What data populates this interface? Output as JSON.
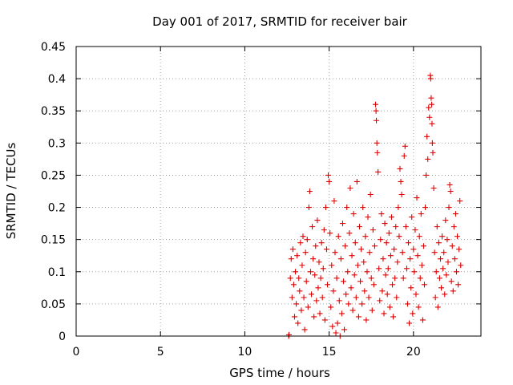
{
  "chart_data": {
    "type": "scatter",
    "title": "Day 001 of 2017, SRMTID for receiver bair",
    "xlabel": "GPS time / hours",
    "ylabel": "SRMTID / TECUs",
    "xlim": [
      0,
      24
    ],
    "ylim": [
      0,
      0.45
    ],
    "x_ticks": [
      0,
      5,
      10,
      15,
      20
    ],
    "y_ticks": [
      0,
      0.05,
      0.1,
      0.15,
      0.2,
      0.25,
      0.3,
      0.35,
      0.4,
      0.45
    ],
    "x_tick_labels": [
      "0",
      "5",
      "10",
      "15",
      "20"
    ],
    "y_tick_labels": [
      "0",
      "0.05",
      "0.1",
      "0.15",
      "0.2",
      "0.25",
      "0.3",
      "0.35",
      "0.4",
      "0.45"
    ],
    "grid": true,
    "marker": "+",
    "color": "#e00000",
    "series": [
      {
        "name": "SRMTID",
        "points": [
          [
            12.6,
            0.0
          ],
          [
            12.62,
            0.002
          ],
          [
            12.7,
            0.09
          ],
          [
            12.75,
            0.12
          ],
          [
            12.8,
            0.06
          ],
          [
            12.85,
            0.135
          ],
          [
            12.9,
            0.08
          ],
          [
            12.95,
            0.03
          ],
          [
            13.0,
            0.1
          ],
          [
            13.05,
            0.05
          ],
          [
            13.1,
            0.125
          ],
          [
            13.15,
            0.02
          ],
          [
            13.2,
            0.09
          ],
          [
            13.25,
            0.07
          ],
          [
            13.3,
            0.145
          ],
          [
            13.35,
            0.04
          ],
          [
            13.4,
            0.11
          ],
          [
            13.45,
            0.155
          ],
          [
            13.5,
            0.06
          ],
          [
            13.55,
            0.01
          ],
          [
            13.6,
            0.13
          ],
          [
            13.65,
            0.085
          ],
          [
            13.7,
            0.15
          ],
          [
            13.75,
            0.045
          ],
          [
            13.8,
            0.2
          ],
          [
            13.85,
            0.225
          ],
          [
            13.9,
            0.1
          ],
          [
            13.95,
            0.065
          ],
          [
            14.0,
            0.17
          ],
          [
            14.05,
            0.12
          ],
          [
            14.1,
            0.03
          ],
          [
            14.15,
            0.095
          ],
          [
            14.2,
            0.14
          ],
          [
            14.25,
            0.055
          ],
          [
            14.3,
            0.18
          ],
          [
            14.35,
            0.075
          ],
          [
            14.4,
            0.115
          ],
          [
            14.45,
            0.035
          ],
          [
            14.5,
            0.09
          ],
          [
            14.55,
            0.145
          ],
          [
            14.6,
            0.06
          ],
          [
            14.65,
            0.105
          ],
          [
            14.7,
            0.165
          ],
          [
            14.75,
            0.025
          ],
          [
            14.8,
            0.2
          ],
          [
            14.85,
            0.135
          ],
          [
            14.9,
            0.08
          ],
          [
            14.95,
            0.25
          ],
          [
            15.0,
            0.24
          ],
          [
            15.05,
            0.16
          ],
          [
            15.1,
            0.045
          ],
          [
            15.15,
            0.11
          ],
          [
            15.2,
            0.015
          ],
          [
            15.25,
            0.07
          ],
          [
            15.3,
            0.21
          ],
          [
            15.35,
            0.13
          ],
          [
            15.4,
            0.005
          ],
          [
            15.45,
            0.09
          ],
          [
            15.5,
            0.02
          ],
          [
            15.55,
            0.155
          ],
          [
            15.6,
            0.055
          ],
          [
            15.65,
            0.0
          ],
          [
            15.7,
            0.12
          ],
          [
            15.75,
            0.035
          ],
          [
            15.8,
            0.175
          ],
          [
            15.85,
            0.085
          ],
          [
            15.9,
            0.01
          ],
          [
            15.95,
            0.14
          ],
          [
            16.0,
            0.065
          ],
          [
            16.05,
            0.2
          ],
          [
            16.1,
            0.1
          ],
          [
            16.15,
            0.05
          ],
          [
            16.2,
            0.16
          ],
          [
            16.25,
            0.23
          ],
          [
            16.3,
            0.075
          ],
          [
            16.35,
            0.125
          ],
          [
            16.4,
            0.04
          ],
          [
            16.45,
            0.19
          ],
          [
            16.5,
            0.095
          ],
          [
            16.55,
            0.145
          ],
          [
            16.6,
            0.06
          ],
          [
            16.65,
            0.24
          ],
          [
            16.7,
            0.11
          ],
          [
            16.75,
            0.03
          ],
          [
            16.8,
            0.17
          ],
          [
            16.85,
            0.085
          ],
          [
            16.9,
            0.135
          ],
          [
            16.95,
            0.05
          ],
          [
            17.0,
            0.2
          ],
          [
            17.05,
            0.115
          ],
          [
            17.1,
            0.07
          ],
          [
            17.15,
            0.155
          ],
          [
            17.2,
            0.025
          ],
          [
            17.25,
            0.1
          ],
          [
            17.3,
            0.185
          ],
          [
            17.35,
            0.06
          ],
          [
            17.4,
            0.13
          ],
          [
            17.45,
            0.22
          ],
          [
            17.5,
            0.09
          ],
          [
            17.55,
            0.04
          ],
          [
            17.6,
            0.165
          ],
          [
            17.65,
            0.08
          ],
          [
            17.7,
            0.14
          ],
          [
            17.75,
            0.36
          ],
          [
            17.78,
            0.35
          ],
          [
            17.8,
            0.335
          ],
          [
            17.83,
            0.3
          ],
          [
            17.86,
            0.285
          ],
          [
            17.9,
            0.255
          ],
          [
            17.95,
            0.105
          ],
          [
            18.0,
            0.055
          ],
          [
            18.05,
            0.15
          ],
          [
            18.1,
            0.19
          ],
          [
            18.15,
            0.07
          ],
          [
            18.2,
            0.12
          ],
          [
            18.25,
            0.035
          ],
          [
            18.3,
            0.175
          ],
          [
            18.35,
            0.095
          ],
          [
            18.4,
            0.145
          ],
          [
            18.45,
            0.065
          ],
          [
            18.5,
            0.105
          ],
          [
            18.55,
            0.16
          ],
          [
            18.6,
            0.045
          ],
          [
            18.65,
            0.125
          ],
          [
            18.7,
            0.185
          ],
          [
            18.75,
            0.08
          ],
          [
            18.8,
            0.03
          ],
          [
            18.85,
            0.135
          ],
          [
            18.9,
            0.09
          ],
          [
            18.95,
            0.17
          ],
          [
            19.0,
            0.06
          ],
          [
            19.05,
            0.115
          ],
          [
            19.1,
            0.2
          ],
          [
            19.15,
            0.155
          ],
          [
            19.2,
            0.26
          ],
          [
            19.25,
            0.24
          ],
          [
            19.3,
            0.22
          ],
          [
            19.35,
            0.13
          ],
          [
            19.4,
            0.09
          ],
          [
            19.45,
            0.28
          ],
          [
            19.5,
            0.295
          ],
          [
            19.55,
            0.17
          ],
          [
            19.6,
            0.105
          ],
          [
            19.65,
            0.05
          ],
          [
            19.7,
            0.145
          ],
          [
            19.75,
            0.02
          ],
          [
            19.8,
            0.12
          ],
          [
            19.85,
            0.075
          ],
          [
            19.9,
            0.185
          ],
          [
            19.95,
            0.035
          ],
          [
            20.0,
            0.135
          ],
          [
            20.05,
            0.1
          ],
          [
            20.1,
            0.165
          ],
          [
            20.15,
            0.065
          ],
          [
            20.2,
            0.215
          ],
          [
            20.25,
            0.125
          ],
          [
            20.3,
            0.045
          ],
          [
            20.35,
            0.155
          ],
          [
            20.4,
            0.09
          ],
          [
            20.45,
            0.19
          ],
          [
            20.5,
            0.11
          ],
          [
            20.55,
            0.025
          ],
          [
            20.6,
            0.14
          ],
          [
            20.65,
            0.08
          ],
          [
            20.7,
            0.2
          ],
          [
            20.75,
            0.25
          ],
          [
            20.8,
            0.31
          ],
          [
            20.85,
            0.275
          ],
          [
            20.9,
            0.355
          ],
          [
            20.95,
            0.34
          ],
          [
            21.0,
            0.405
          ],
          [
            21.02,
            0.4
          ],
          [
            21.05,
            0.37
          ],
          [
            21.08,
            0.36
          ],
          [
            21.1,
            0.33
          ],
          [
            21.12,
            0.3
          ],
          [
            21.15,
            0.285
          ],
          [
            21.2,
            0.23
          ],
          [
            21.25,
            0.13
          ],
          [
            21.3,
            0.06
          ],
          [
            21.35,
            0.1
          ],
          [
            21.4,
            0.17
          ],
          [
            21.45,
            0.045
          ],
          [
            21.5,
            0.145
          ],
          [
            21.55,
            0.09
          ],
          [
            21.6,
            0.12
          ],
          [
            21.65,
            0.075
          ],
          [
            21.7,
            0.155
          ],
          [
            21.75,
            0.105
          ],
          [
            21.8,
            0.13
          ],
          [
            21.85,
            0.065
          ],
          [
            21.9,
            0.18
          ],
          [
            21.95,
            0.095
          ],
          [
            22.0,
            0.15
          ],
          [
            22.05,
            0.115
          ],
          [
            22.1,
            0.2
          ],
          [
            22.15,
            0.235
          ],
          [
            22.2,
            0.225
          ],
          [
            22.25,
            0.085
          ],
          [
            22.3,
            0.14
          ],
          [
            22.35,
            0.07
          ],
          [
            22.4,
            0.17
          ],
          [
            22.45,
            0.12
          ],
          [
            22.5,
            0.19
          ],
          [
            22.55,
            0.1
          ],
          [
            22.6,
            0.155
          ],
          [
            22.65,
            0.08
          ],
          [
            22.7,
            0.135
          ],
          [
            22.75,
            0.21
          ],
          [
            22.8,
            0.11
          ]
        ]
      }
    ]
  }
}
